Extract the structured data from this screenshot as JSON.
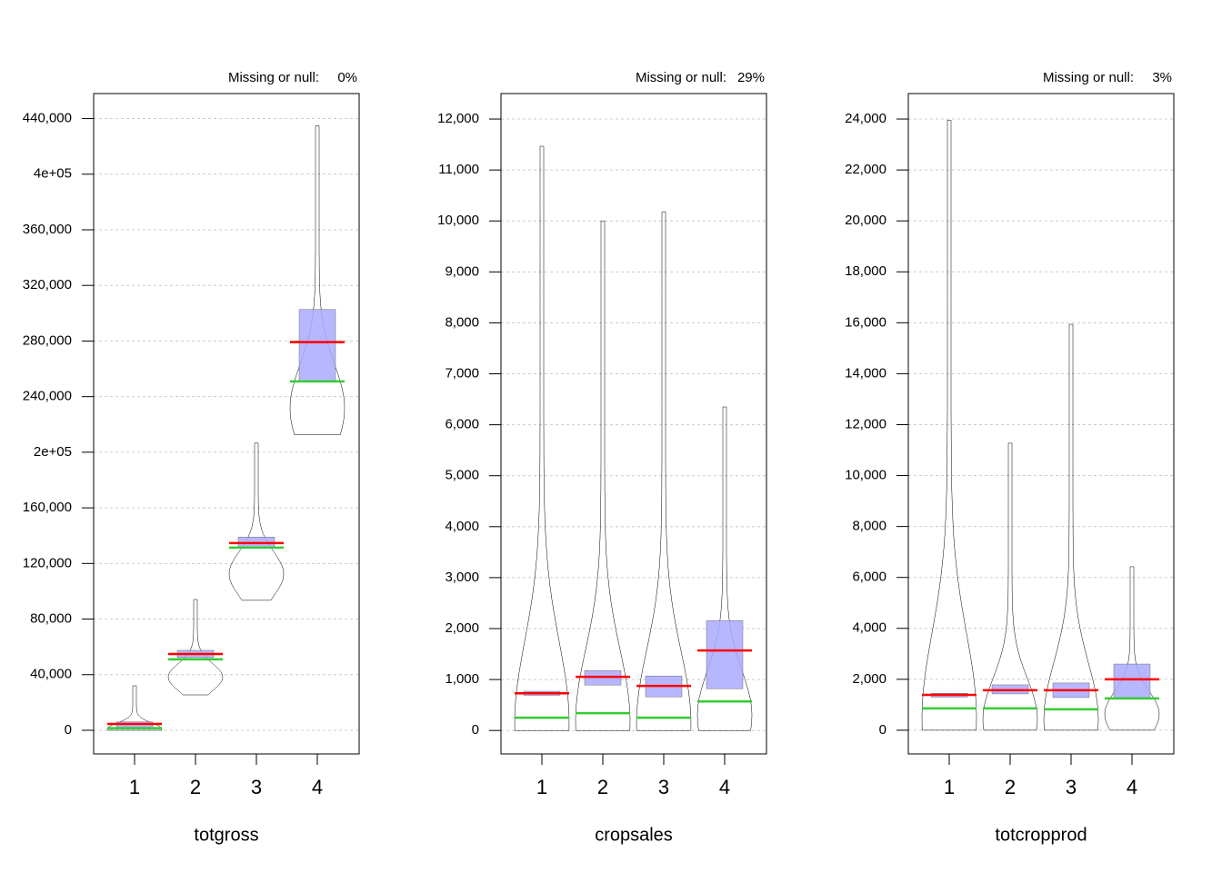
{
  "chart_data": [
    {
      "type": "pirate",
      "xlabel": "totgross",
      "missing_text": "Missing or null:",
      "missing": "0%",
      "categories": [
        "1",
        "2",
        "3",
        "4"
      ],
      "ylim": [
        -17000,
        458000
      ],
      "yticks": [
        0,
        {
          "value": 40000,
          "label": "40,000"
        },
        {
          "value": 80000,
          "label": "80,000"
        },
        {
          "value": 120000,
          "label": "120,000"
        },
        {
          "value": 160000,
          "label": "160,000"
        },
        {
          "value": 200000,
          "label": "2e+05"
        },
        {
          "value": 240000,
          "label": "240,000"
        },
        {
          "value": 280000,
          "label": "280,000"
        },
        {
          "value": 320000,
          "label": "320,000"
        },
        {
          "value": 360000,
          "label": "360,000"
        },
        {
          "value": 400000,
          "label": "4e+05"
        },
        {
          "value": 440000,
          "label": "440,000"
        }
      ],
      "grid": true,
      "mean": [
        4600,
        54900,
        134700,
        279200
      ],
      "mean_color": "#ff0000",
      "median": [
        1500,
        51000,
        131400,
        251000
      ],
      "median_color": "#33cc33",
      "box_low": [
        1000,
        52300,
        130800,
        251000
      ],
      "box_high": [
        6000,
        57500,
        139000,
        302700
      ],
      "box_color": "#aaaaff",
      "min": [
        0,
        25500,
        93500,
        212500
      ],
      "max": [
        32000,
        94100,
        206600,
        434800
      ]
    },
    {
      "type": "pirate",
      "xlabel": "cropsales",
      "missing_text": "Missing or null:",
      "missing": "29%",
      "categories": [
        "1",
        "2",
        "3",
        "4"
      ],
      "ylim": [
        -460,
        12500
      ],
      "yticks": [
        0,
        {
          "value": 1000,
          "label": "1,000"
        },
        {
          "value": 2000,
          "label": "2,000"
        },
        {
          "value": 3000,
          "label": "3,000"
        },
        {
          "value": 4000,
          "label": "4,000"
        },
        {
          "value": 5000,
          "label": "5,000"
        },
        {
          "value": 6000,
          "label": "6,000"
        },
        {
          "value": 7000,
          "label": "7,000"
        },
        {
          "value": 8000,
          "label": "8,000"
        },
        {
          "value": 9000,
          "label": "9,000"
        },
        {
          "value": 10000,
          "label": "10,000"
        },
        {
          "value": 11000,
          "label": "11,000"
        },
        {
          "value": 12000,
          "label": "12,000"
        }
      ],
      "grid": true,
      "mean": [
        731,
        1052,
        874,
        1570
      ],
      "mean_color": "#ff0000",
      "median": [
        250,
        339,
        250,
        570
      ],
      "median_color": "#33cc33",
      "box_low": [
        690,
        892,
        660,
        820
      ],
      "box_high": [
        770,
        1177,
        1070,
        2158
      ],
      "box_color": "#aaaaff",
      "min": [
        0,
        0,
        0,
        0
      ],
      "max": [
        11466,
        10000,
        10180,
        6350
      ]
    },
    {
      "type": "pirate",
      "xlabel": "totcropprod",
      "missing_text": "Missing or null:",
      "missing": "3%",
      "categories": [
        "1",
        "2",
        "3",
        "4"
      ],
      "ylim": [
        -930,
        25000
      ],
      "yticks": [
        0,
        {
          "value": 2000,
          "label": "2,000"
        },
        {
          "value": 4000,
          "label": "4,000"
        },
        {
          "value": 6000,
          "label": "6,000"
        },
        {
          "value": 8000,
          "label": "8,000"
        },
        {
          "value": 10000,
          "label": "10,000"
        },
        {
          "value": 12000,
          "label": "12,000"
        },
        {
          "value": 14000,
          "label": "14,000"
        },
        {
          "value": 16000,
          "label": "16,000"
        },
        {
          "value": 18000,
          "label": "18,000"
        },
        {
          "value": 20000,
          "label": "20,000"
        },
        {
          "value": 22000,
          "label": "22,000"
        },
        {
          "value": 24000,
          "label": "24,000"
        }
      ],
      "grid": true,
      "mean": [
        1390,
        1570,
        1570,
        2000
      ],
      "mean_color": "#ff0000",
      "median": [
        856,
        856,
        820,
        1250
      ],
      "median_color": "#33cc33",
      "box_low": [
        1300,
        1427,
        1284,
        1250
      ],
      "box_high": [
        1450,
        1783,
        1855,
        2600
      ],
      "box_color": "#aaaaff",
      "min": [
        0,
        0,
        0,
        0
      ],
      "max": [
        23960,
        11270,
        15940,
        6420
      ]
    }
  ]
}
